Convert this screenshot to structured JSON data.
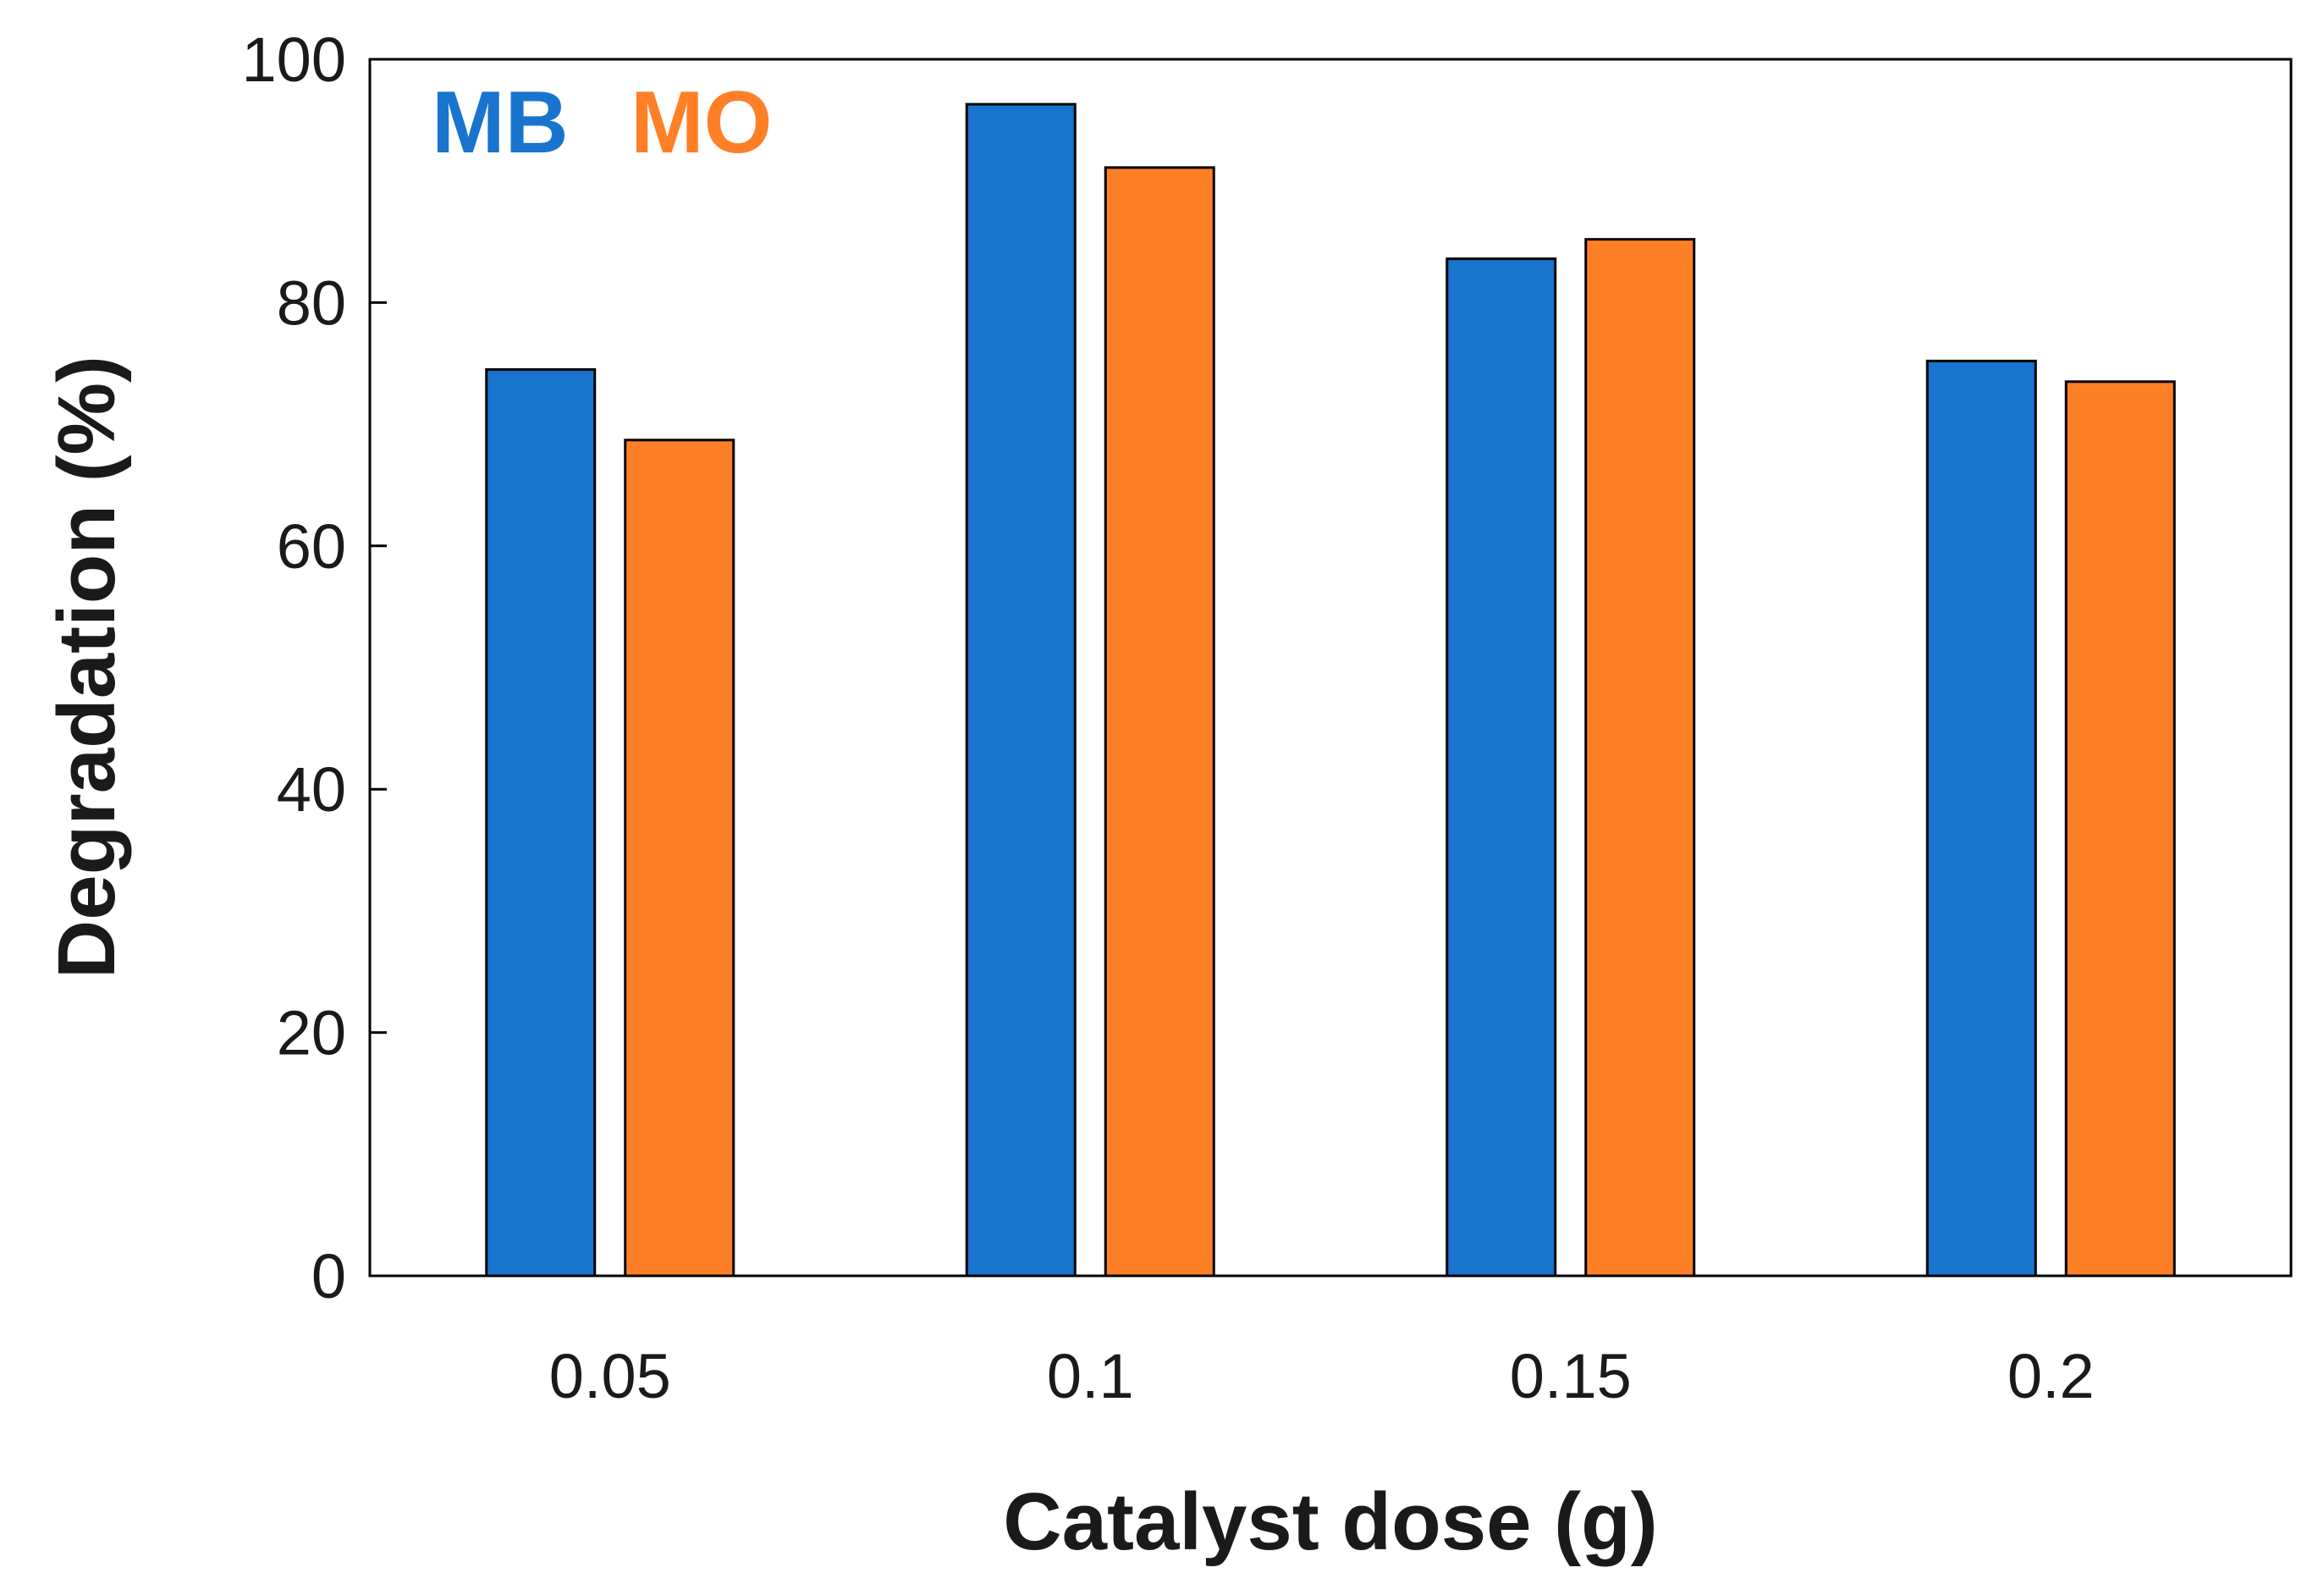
{
  "chart_data": {
    "type": "bar",
    "title": "",
    "xlabel": "Catalyst dose (g)",
    "ylabel": "Degradation (%)",
    "categories": [
      "0.05",
      "0.1",
      "0.15",
      "0.2"
    ],
    "series": [
      {
        "name": "MB",
        "color": "#1874cd",
        "values": [
          74.5,
          96.3,
          83.6,
          75.2
        ]
      },
      {
        "name": "MO",
        "color": "#ff7f27",
        "values": [
          68.7,
          91.1,
          85.2,
          73.5
        ]
      }
    ],
    "ylim": [
      0,
      100
    ],
    "yticks": [
      "0",
      "20",
      "40",
      "60",
      "80",
      "100"
    ],
    "grid": false,
    "legend": "top-left"
  }
}
